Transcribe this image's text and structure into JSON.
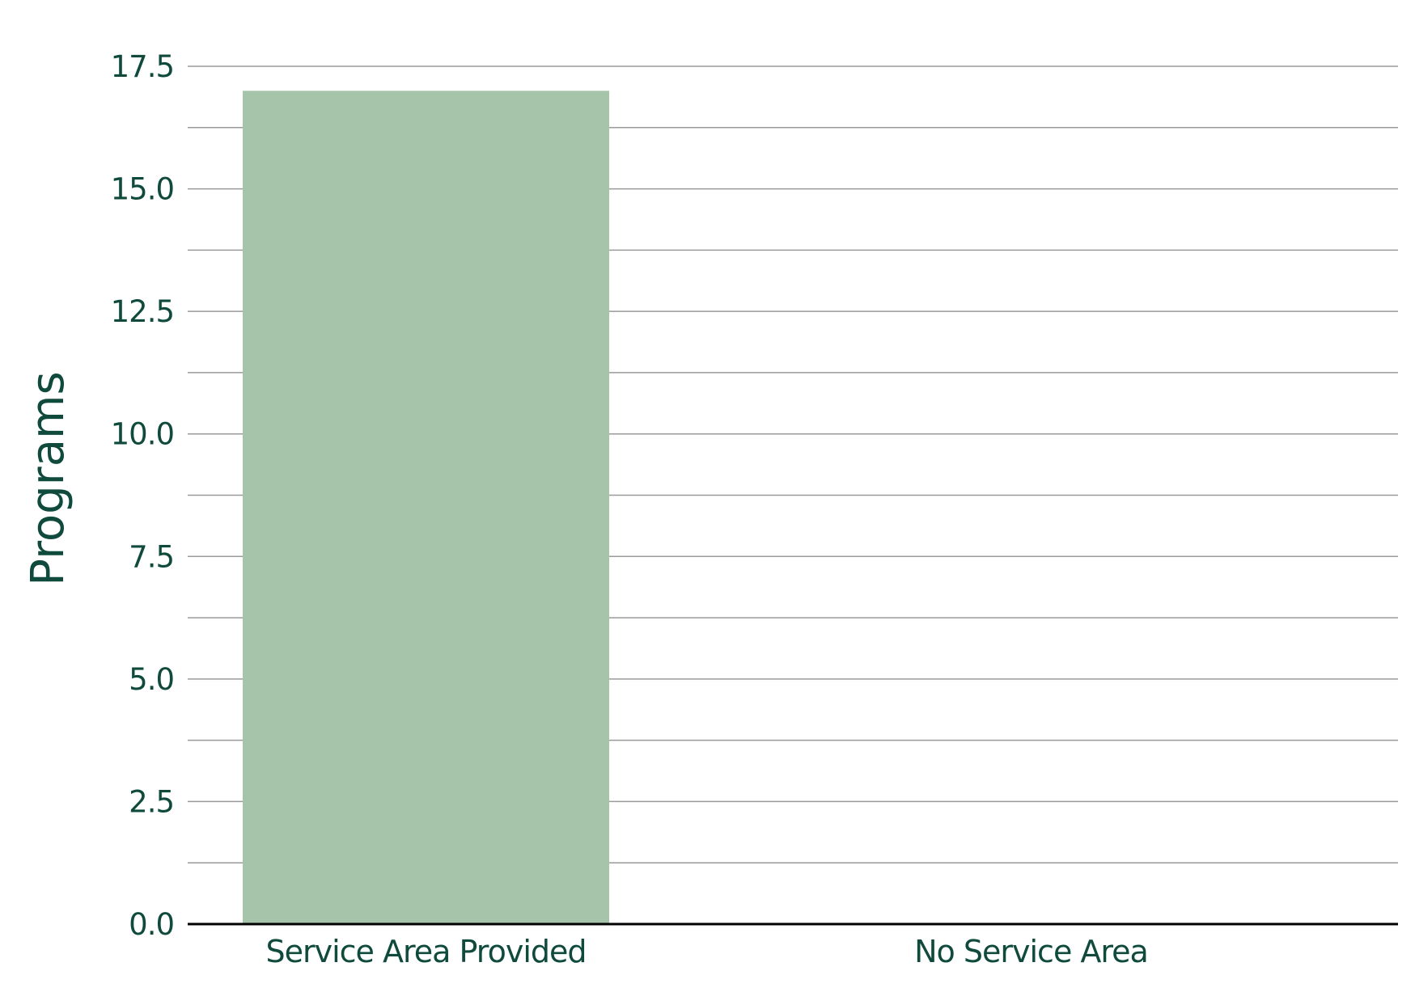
{
  "chart_data": {
    "type": "bar",
    "categories": [
      "Service Area Provided",
      "No Service Area"
    ],
    "values": [
      17,
      0
    ],
    "title": "",
    "xlabel": "",
    "ylabel": "Programs",
    "ylim": [
      0,
      17.5
    ],
    "yticks": [
      "0.0",
      "2.5",
      "5.0",
      "7.5",
      "10.0",
      "12.5",
      "15.0",
      "17.5"
    ],
    "grid": true,
    "colors": {
      "bar": "#a5c4a9",
      "text": "#0f4a3c",
      "grid": "#9a9a9a",
      "axis": "#000000"
    }
  }
}
